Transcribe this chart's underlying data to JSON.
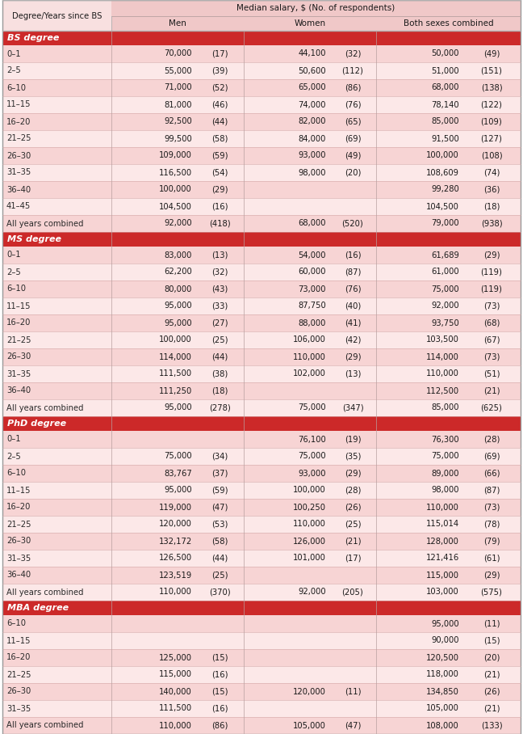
{
  "title": "Median salary, $ (No. of respondents)",
  "section_header_color": "#cc2929",
  "section_header_text_color": "#ffffff",
  "odd_row_color": "#f7d4d4",
  "even_row_color": "#fce8e8",
  "header_bg_color": "#f0c8c8",
  "header_top_bg": "#f0c8c8",
  "col0_bg": "#f0c8c8",
  "sections": [
    {
      "name": "BS degree",
      "rows": [
        [
          "0–1",
          "70,000",
          "(17)",
          "44,100",
          "(32)",
          "50,000",
          "(49)"
        ],
        [
          "2–5",
          "55,000",
          "(39)",
          "50,600",
          "(112)",
          "51,000",
          "(151)"
        ],
        [
          "6–10",
          "71,000",
          "(52)",
          "65,000",
          "(86)",
          "68,000",
          "(138)"
        ],
        [
          "11–15",
          "81,000",
          "(46)",
          "74,000",
          "(76)",
          "78,140",
          "(122)"
        ],
        [
          "16–20",
          "92,500",
          "(44)",
          "82,000",
          "(65)",
          "85,000",
          "(109)"
        ],
        [
          "21–25",
          "99,500",
          "(58)",
          "84,000",
          "(69)",
          "91,500",
          "(127)"
        ],
        [
          "26–30",
          "109,000",
          "(59)",
          "93,000",
          "(49)",
          "100,000",
          "(108)"
        ],
        [
          "31–35",
          "116,500",
          "(54)",
          "98,000",
          "(20)",
          "108,609",
          "(74)"
        ],
        [
          "36–40",
          "100,000",
          "(29)",
          "",
          "",
          "99,280",
          "(36)"
        ],
        [
          "41–45",
          "104,500",
          "(16)",
          "",
          "",
          "104,500",
          "(18)"
        ],
        [
          "All years combined",
          "92,000",
          "(418)",
          "68,000",
          "(520)",
          "79,000",
          "(938)"
        ]
      ]
    },
    {
      "name": "MS degree",
      "rows": [
        [
          "0–1",
          "83,000",
          "(13)",
          "54,000",
          "(16)",
          "61,689",
          "(29)"
        ],
        [
          "2–5",
          "62,200",
          "(32)",
          "60,000",
          "(87)",
          "61,000",
          "(119)"
        ],
        [
          "6–10",
          "80,000",
          "(43)",
          "73,000",
          "(76)",
          "75,000",
          "(119)"
        ],
        [
          "11–15",
          "95,000",
          "(33)",
          "87,750",
          "(40)",
          "92,000",
          "(73)"
        ],
        [
          "16–20",
          "95,000",
          "(27)",
          "88,000",
          "(41)",
          "93,750",
          "(68)"
        ],
        [
          "21–25",
          "100,000",
          "(25)",
          "106,000",
          "(42)",
          "103,500",
          "(67)"
        ],
        [
          "26–30",
          "114,000",
          "(44)",
          "110,000",
          "(29)",
          "114,000",
          "(73)"
        ],
        [
          "31–35",
          "111,500",
          "(38)",
          "102,000",
          "(13)",
          "110,000",
          "(51)"
        ],
        [
          "36–40",
          "111,250",
          "(18)",
          "",
          "",
          "112,500",
          "(21)"
        ],
        [
          "All years combined",
          "95,000",
          "(278)",
          "75,000",
          "(347)",
          "85,000",
          "(625)"
        ]
      ]
    },
    {
      "name": "PhD degree",
      "rows": [
        [
          "0–1",
          "",
          "",
          "76,100",
          "(19)",
          "76,300",
          "(28)"
        ],
        [
          "2–5",
          "75,000",
          "(34)",
          "75,000",
          "(35)",
          "75,000",
          "(69)"
        ],
        [
          "6–10",
          "83,767",
          "(37)",
          "93,000",
          "(29)",
          "89,000",
          "(66)"
        ],
        [
          "11–15",
          "95,000",
          "(59)",
          "100,000",
          "(28)",
          "98,000",
          "(87)"
        ],
        [
          "16–20",
          "119,000",
          "(47)",
          "100,250",
          "(26)",
          "110,000",
          "(73)"
        ],
        [
          "21–25",
          "120,000",
          "(53)",
          "110,000",
          "(25)",
          "115,014",
          "(78)"
        ],
        [
          "26–30",
          "132,172",
          "(58)",
          "126,000",
          "(21)",
          "128,000",
          "(79)"
        ],
        [
          "31–35",
          "126,500",
          "(44)",
          "101,000",
          "(17)",
          "121,416",
          "(61)"
        ],
        [
          "36–40",
          "123,519",
          "(25)",
          "",
          "",
          "115,000",
          "(29)"
        ],
        [
          "All years combined",
          "110,000",
          "(370)",
          "92,000",
          "(205)",
          "103,000",
          "(575)"
        ]
      ]
    },
    {
      "name": "MBA degree",
      "rows": [
        [
          "6–10",
          "",
          "",
          "",
          "",
          "95,000",
          "(11)"
        ],
        [
          "11–15",
          "",
          "",
          "",
          "",
          "90,000",
          "(15)"
        ],
        [
          "16–20",
          "125,000",
          "(15)",
          "",
          "",
          "120,500",
          "(20)"
        ],
        [
          "21–25",
          "115,000",
          "(16)",
          "",
          "",
          "118,000",
          "(21)"
        ],
        [
          "26–30",
          "140,000",
          "(15)",
          "120,000",
          "(11)",
          "134,850",
          "(26)"
        ],
        [
          "31–35",
          "111,500",
          "(16)",
          "",
          "",
          "105,000",
          "(21)"
        ],
        [
          "All years combined",
          "110,000",
          "(86)",
          "105,000",
          "(47)",
          "108,000",
          "(133)"
        ]
      ]
    }
  ]
}
